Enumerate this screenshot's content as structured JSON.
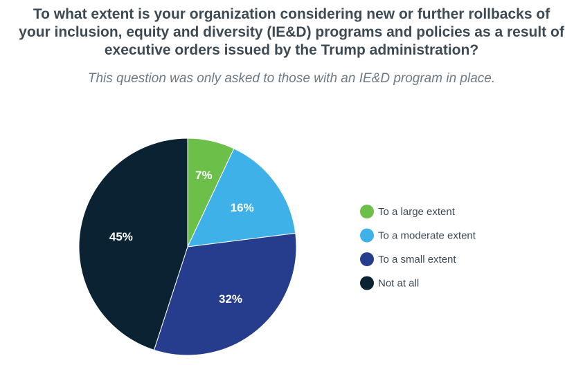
{
  "title_lines": [
    "To what extent is your organization considering new or further rollbacks of",
    "your inclusion, equity and diversity (IE&D) programs and policies as a result of",
    "executive orders issued by the Trump administration?"
  ],
  "subtitle": "This question was only asked to those with an IE&D program in place.",
  "chart_data": {
    "type": "pie",
    "categories": [
      "To a large extent",
      "To a moderate extent",
      "To a small extent",
      "Not at all"
    ],
    "values": [
      7,
      16,
      32,
      45
    ],
    "data_labels": [
      "7%",
      "16%",
      "32%",
      "45%"
    ],
    "colors": [
      "#6cc04a",
      "#3eb1e8",
      "#253d8c",
      "#0b2233"
    ],
    "start_angle_deg": 0,
    "direction": "clockwise",
    "legend_position": "right"
  }
}
